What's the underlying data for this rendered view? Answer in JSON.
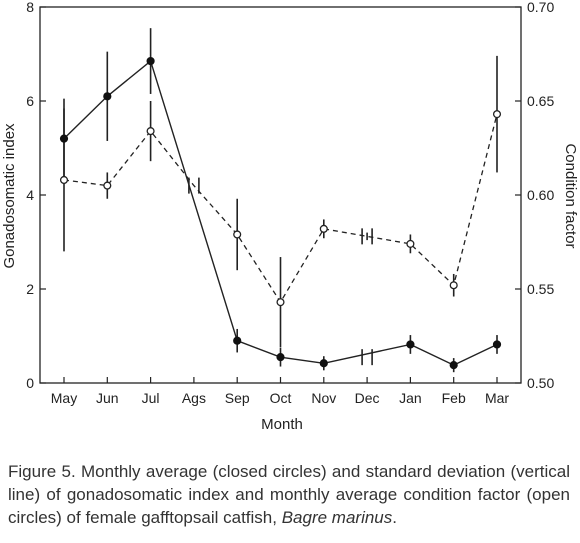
{
  "chart_data": {
    "type": "line",
    "xlabel": "Month",
    "categories": [
      "May",
      "Jun",
      "Jul",
      "Ags",
      "Sep",
      "Oct",
      "Nov",
      "Dec",
      "Jan",
      "Feb",
      "Mar"
    ],
    "y_left": {
      "label": "Gonadosomatic index",
      "lim": [
        0,
        8
      ],
      "ticks": [
        0,
        2,
        4,
        6,
        8
      ]
    },
    "y_right": {
      "label": "Condition factor",
      "lim": [
        0.5,
        0.7
      ],
      "ticks": [
        "0.50",
        "0.55",
        "0.60",
        "0.65",
        "0.70"
      ]
    },
    "series": [
      {
        "axis": "left",
        "marker": "closed-circle",
        "line": "solid",
        "values": [
          5.2,
          6.1,
          6.85,
          null,
          0.9,
          0.55,
          0.42,
          null,
          0.82,
          0.38,
          0.82
        ],
        "error": [
          0.85,
          0.95,
          0.7,
          null,
          0.25,
          0.2,
          0.15,
          null,
          0.2,
          0.15,
          0.2
        ]
      },
      {
        "axis": "right",
        "marker": "open-circle",
        "line": "dashed",
        "values": [
          0.608,
          0.605,
          0.634,
          0.605,
          0.579,
          0.543,
          0.582,
          0.578,
          0.574,
          0.552,
          0.643
        ],
        "error": [
          0.038,
          0.007,
          0.016,
          0.0,
          0.019,
          0.024,
          0.005,
          0.002,
          0.005,
          0.006,
          0.031
        ]
      }
    ]
  },
  "caption": {
    "text": "Figure 5. Monthly average (closed circles) and standard deviation (vertical line) of gonadosomatic index and monthly average condition factor (open circles) of female gafftopsail catfish, ",
    "species": "Bagre marinus",
    "end": "."
  }
}
